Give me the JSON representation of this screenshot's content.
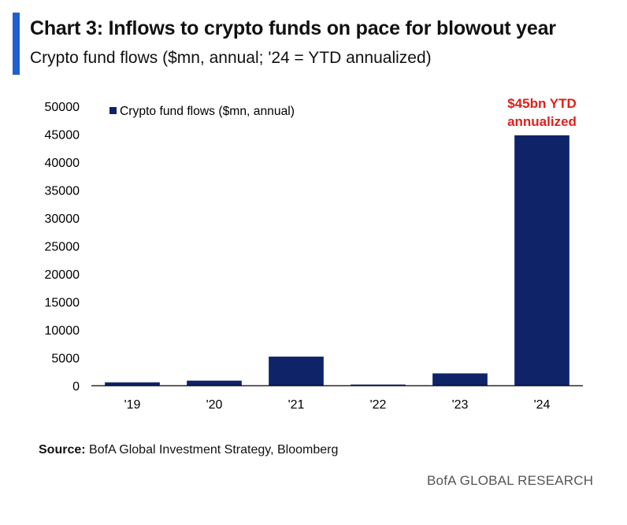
{
  "header": {
    "title": "Chart 3: Inflows to crypto funds on pace for blowout year",
    "subtitle": "Crypto fund flows ($mn, annual; '24 = YTD annualized)"
  },
  "footer": {
    "source_label": "Source:",
    "source_text": "BofA Global Investment Strategy, Bloomberg",
    "brand": "BofA GLOBAL RESEARCH"
  },
  "colors": {
    "bar": "#0f2368",
    "annotation": "#e0201b",
    "accent": "#1f5fcf"
  },
  "chart_data": {
    "type": "bar",
    "categories": [
      "'19",
      "'20",
      "'21",
      "'22",
      "'23",
      "'24"
    ],
    "series": [
      {
        "name": "Crypto fund flows ($mn, annual)",
        "values": [
          600,
          900,
          5200,
          200,
          2200,
          44800
        ]
      }
    ],
    "ylim": [
      0,
      50000
    ],
    "yticks": [
      0,
      5000,
      10000,
      15000,
      20000,
      25000,
      30000,
      35000,
      40000,
      45000,
      50000
    ],
    "legend_position": "top-left",
    "grid": false,
    "annotations": [
      {
        "category": "'24",
        "lines": [
          "$45bn YTD",
          "annualized"
        ]
      }
    ]
  }
}
